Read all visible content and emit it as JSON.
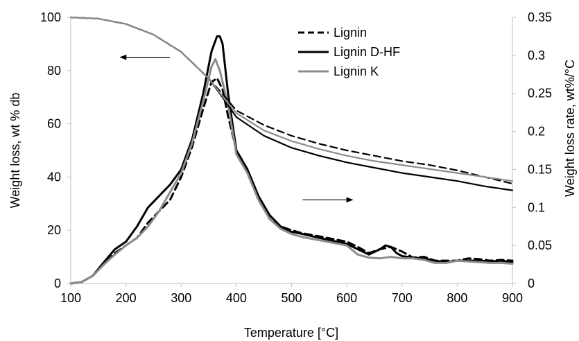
{
  "chart_data": {
    "type": "line",
    "title": "",
    "xlabel": "Temperature [°C]",
    "ylabel_left": "Weight loss, wt % db",
    "ylabel_right": "Weight loss rate, wt%/°C",
    "xlim": [
      100,
      900
    ],
    "ylim_left": [
      0,
      100
    ],
    "ylim_right": [
      0,
      0.35
    ],
    "x_ticks": [
      "100",
      "200",
      "300",
      "400",
      "500",
      "600",
      "700",
      "800",
      "900"
    ],
    "y_left_ticks": [
      "0",
      "20",
      "40",
      "60",
      "80",
      "100"
    ],
    "y_right_ticks": [
      "0",
      "0.05",
      "0.1",
      "0.15",
      "0.2",
      "0.25",
      "0.3",
      "0.35"
    ],
    "grid": false,
    "legend_position": "top-right",
    "legend": [
      "Lignin",
      "Lignin D-HF",
      "Lignin K"
    ],
    "annotations": [
      {
        "name": "arrow-to-left-axis",
        "text": "",
        "at": [
          280,
          85
        ],
        "direction": "left",
        "axis": "left"
      },
      {
        "name": "arrow-to-right-axis",
        "text": "",
        "at": [
          520,
          0.11
        ],
        "direction": "right",
        "axis": "right"
      }
    ],
    "series": [
      {
        "name": "Lignin",
        "axis": "left",
        "kind": "weight",
        "color": "#000000",
        "dash": "10,6",
        "x": [
          100,
          150,
          200,
          250,
          300,
          350,
          380,
          400,
          450,
          500,
          550,
          600,
          650,
          700,
          750,
          800,
          850,
          900
        ],
        "values": [
          100,
          99.5,
          97.5,
          93.5,
          87,
          77,
          70,
          65,
          59.5,
          55.5,
          52.5,
          50,
          48,
          46,
          44.5,
          42.5,
          40,
          37.5
        ]
      },
      {
        "name": "Lignin D-HF",
        "axis": "left",
        "kind": "weight",
        "color": "#000000",
        "dash": "",
        "x": [
          100,
          150,
          200,
          250,
          300,
          350,
          380,
          400,
          450,
          500,
          550,
          600,
          650,
          700,
          750,
          800,
          850,
          900
        ],
        "values": [
          100,
          99.5,
          97.5,
          93.5,
          87,
          77,
          68.5,
          62.5,
          55.5,
          51,
          48,
          45.5,
          43.5,
          41.5,
          40,
          38.5,
          36.5,
          35
        ]
      },
      {
        "name": "Lignin K",
        "axis": "left",
        "kind": "weight",
        "color": "#8c8c8c",
        "dash": "",
        "x": [
          100,
          150,
          200,
          250,
          300,
          350,
          380,
          400,
          450,
          500,
          550,
          600,
          650,
          700,
          750,
          800,
          850,
          900
        ],
        "values": [
          100,
          99.5,
          97.5,
          93.5,
          87,
          77,
          69,
          64,
          57.5,
          53.5,
          50.5,
          48,
          46,
          44.5,
          43,
          41.5,
          40,
          38.5
        ]
      },
      {
        "name": "Lignin",
        "axis": "right",
        "kind": "rate",
        "color": "#000000",
        "dash": "10,6",
        "x": [
          100,
          120,
          140,
          160,
          180,
          200,
          220,
          240,
          260,
          280,
          300,
          320,
          340,
          355,
          365,
          375,
          385,
          400,
          420,
          440,
          460,
          480,
          500,
          520,
          550,
          600,
          620,
          640,
          660,
          680,
          700,
          720,
          740,
          760,
          780,
          800,
          820,
          840,
          860,
          880,
          900
        ],
        "values": [
          0.0,
          0.002,
          0.01,
          0.025,
          0.04,
          0.05,
          0.06,
          0.08,
          0.095,
          0.11,
          0.14,
          0.18,
          0.23,
          0.265,
          0.27,
          0.255,
          0.22,
          0.175,
          0.15,
          0.115,
          0.085,
          0.075,
          0.07,
          0.066,
          0.062,
          0.055,
          0.048,
          0.04,
          0.045,
          0.048,
          0.042,
          0.034,
          0.035,
          0.03,
          0.03,
          0.03,
          0.033,
          0.032,
          0.03,
          0.031,
          0.03
        ]
      },
      {
        "name": "Lignin D-HF",
        "axis": "right",
        "kind": "rate",
        "color": "#000000",
        "dash": "",
        "x": [
          100,
          120,
          140,
          160,
          180,
          200,
          220,
          240,
          260,
          280,
          300,
          320,
          340,
          355,
          365,
          370,
          375,
          385,
          400,
          420,
          440,
          460,
          480,
          500,
          520,
          550,
          600,
          620,
          640,
          660,
          670,
          680,
          690,
          700,
          720,
          740,
          760,
          780,
          800,
          820,
          840,
          860,
          880,
          900
        ],
        "values": [
          0.0,
          0.002,
          0.01,
          0.028,
          0.045,
          0.055,
          0.075,
          0.1,
          0.115,
          0.13,
          0.15,
          0.19,
          0.25,
          0.305,
          0.325,
          0.325,
          0.315,
          0.25,
          0.175,
          0.15,
          0.115,
          0.09,
          0.075,
          0.068,
          0.065,
          0.06,
          0.052,
          0.045,
          0.038,
          0.045,
          0.05,
          0.048,
          0.04,
          0.036,
          0.034,
          0.033,
          0.03,
          0.028,
          0.03,
          0.03,
          0.03,
          0.029,
          0.03,
          0.028
        ]
      },
      {
        "name": "Lignin K",
        "axis": "right",
        "kind": "rate",
        "color": "#8c8c8c",
        "dash": "",
        "x": [
          100,
          120,
          140,
          160,
          180,
          200,
          220,
          240,
          260,
          280,
          300,
          320,
          340,
          355,
          362,
          370,
          385,
          400,
          420,
          440,
          460,
          480,
          500,
          520,
          550,
          600,
          620,
          640,
          660,
          680,
          700,
          720,
          740,
          760,
          780,
          800,
          820,
          840,
          860,
          880,
          900
        ],
        "values": [
          0.0,
          0.002,
          0.01,
          0.025,
          0.038,
          0.05,
          0.06,
          0.075,
          0.095,
          0.12,
          0.145,
          0.185,
          0.24,
          0.285,
          0.295,
          0.28,
          0.235,
          0.17,
          0.145,
          0.11,
          0.085,
          0.072,
          0.065,
          0.061,
          0.057,
          0.05,
          0.038,
          0.034,
          0.033,
          0.035,
          0.033,
          0.033,
          0.031,
          0.027,
          0.027,
          0.03,
          0.029,
          0.028,
          0.027,
          0.027,
          0.026
        ]
      }
    ]
  }
}
